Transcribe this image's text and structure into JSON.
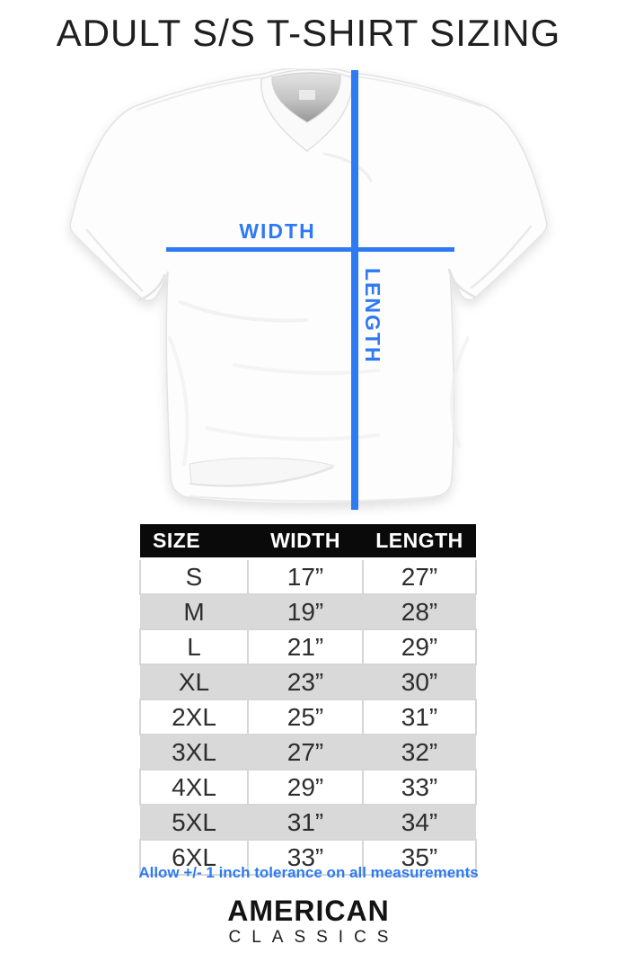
{
  "theme": {
    "accent": "#2e7af3",
    "header_bg": "#0a0a0a",
    "alt_row": "#d9d9d9"
  },
  "title": "ADULT S/S T-SHIRT SIZING",
  "diagram": {
    "width_label": "WIDTH",
    "length_label": "LENGTH"
  },
  "size_table": {
    "headers": [
      "SIZE",
      "WIDTH",
      "LENGTH"
    ],
    "rows": [
      [
        "S",
        "17”",
        "27”"
      ],
      [
        "M",
        "19”",
        "28”"
      ],
      [
        "L",
        "21”",
        "29”"
      ],
      [
        "XL",
        "23”",
        "30”"
      ],
      [
        "2XL",
        "25”",
        "31”"
      ],
      [
        "3XL",
        "27”",
        "32”"
      ],
      [
        "4XL",
        "29”",
        "33”"
      ],
      [
        "5XL",
        "31”",
        "34”"
      ],
      [
        "6XL",
        "33”",
        "35”"
      ]
    ]
  },
  "tolerance_note": "Allow +/- 1 inch tolerance on all measurements",
  "brand": {
    "primary": "AMERICAN",
    "secondary": "CLASSICS"
  }
}
